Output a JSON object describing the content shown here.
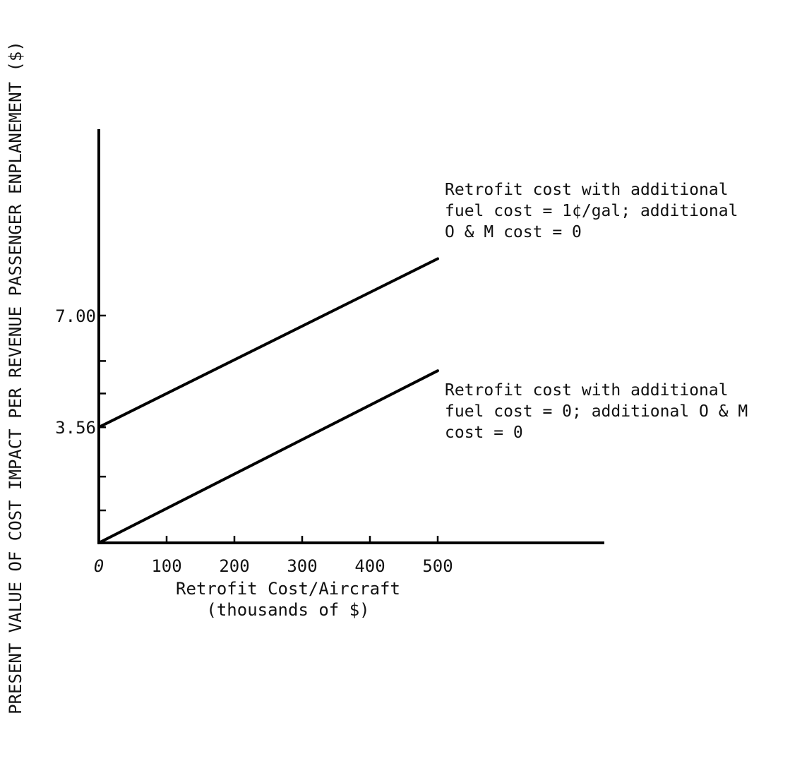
{
  "chart_data": {
    "type": "line",
    "title": "",
    "xlabel": "Retrofit Cost/Aircraft",
    "xlabel_sub": "(thousands of $)",
    "ylabel": "PRESENT VALUE OF COST IMPACT PER REVENUE PASSENGER ENPLANEMENT ($)",
    "origin_label": "0",
    "x_ticks": [
      "100",
      "200",
      "300",
      "400",
      "500"
    ],
    "x_tick_values": [
      100,
      200,
      300,
      400,
      500
    ],
    "y_tick_labels": [
      {
        "label": "3.56",
        "value": 3.56
      },
      {
        "label": "7.00",
        "value": 7.0
      }
    ],
    "y_tick_values": [
      1.0,
      2.04,
      3.56,
      4.6,
      5.6,
      7.0
    ],
    "xlim": [
      0,
      720
    ],
    "ylim": [
      0,
      12.1
    ],
    "grid": false,
    "series": [
      {
        "x": [
          0,
          500
        ],
        "y": [
          3.56,
          8.75
        ],
        "annotation": [
          "Retrofit cost with additional",
          "fuel cost = 1¢/gal; additional",
          "O & M cost = 0"
        ]
      },
      {
        "x": [
          0,
          500
        ],
        "y": [
          0,
          5.3
        ],
        "annotation": [
          "Retrofit cost with additional",
          "fuel cost = 0; additional O & M",
          "cost = 0"
        ]
      }
    ]
  }
}
